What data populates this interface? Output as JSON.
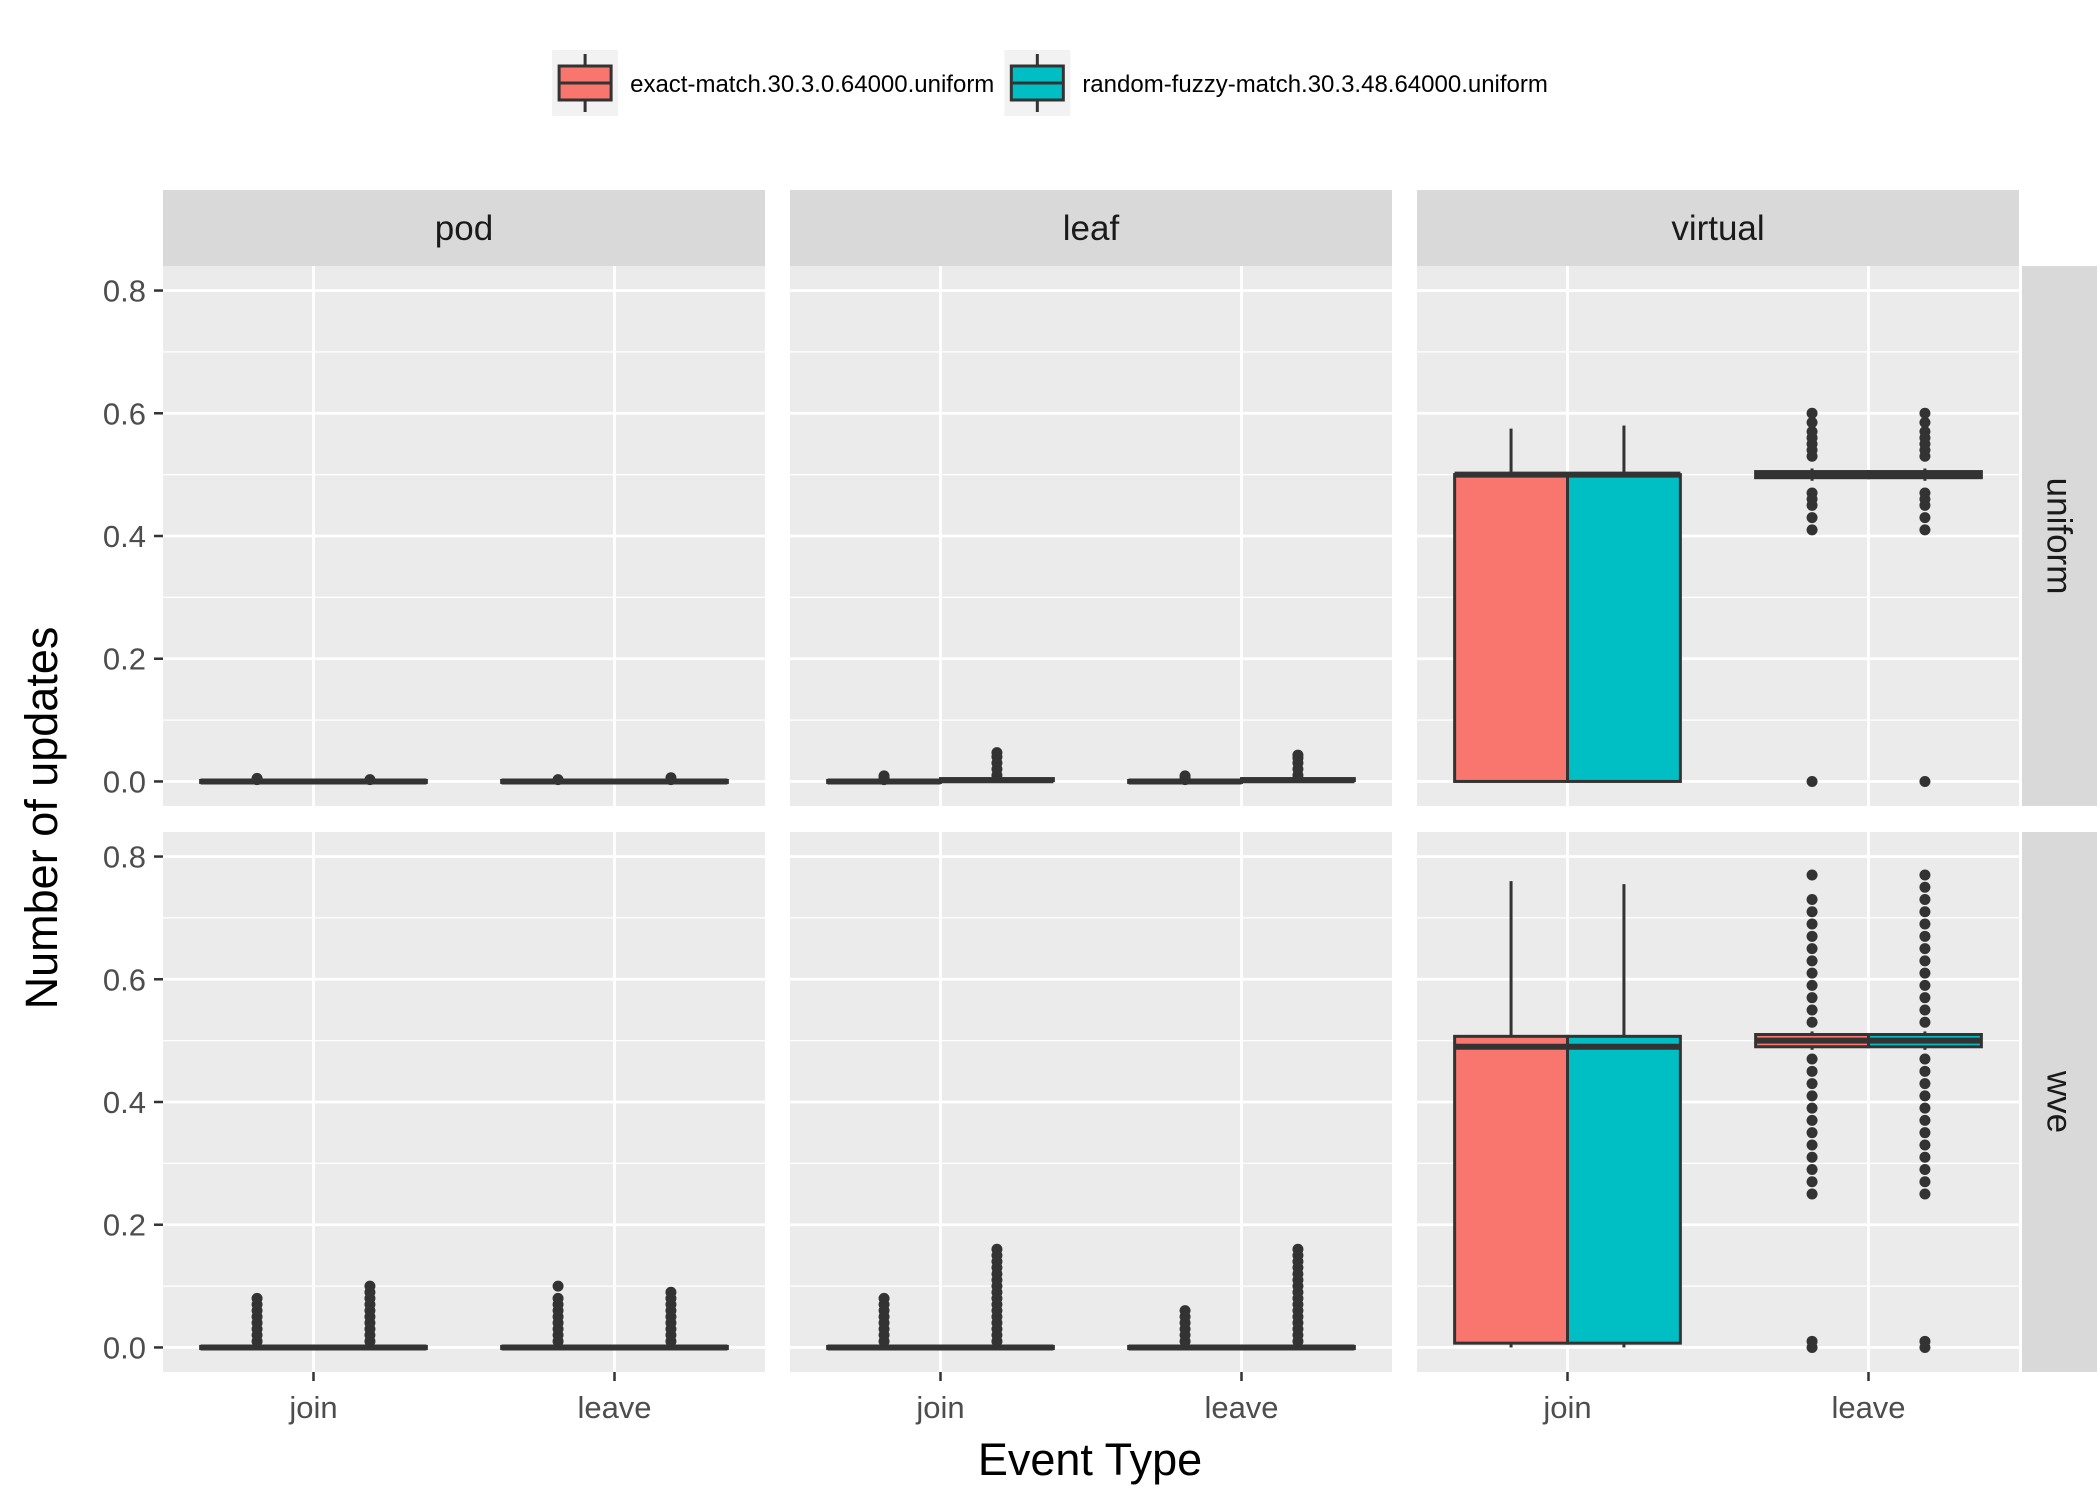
{
  "chart_data": {
    "type": "boxplot",
    "title": "",
    "xlabel": "Event Type",
    "ylabel": "Number of updates",
    "ylim": [
      -0.04,
      0.84
    ],
    "yticks": [
      0.0,
      0.2,
      0.4,
      0.6,
      0.8
    ],
    "ytick_labels": [
      "0.0",
      "0.2",
      "0.4",
      "0.6",
      "0.8"
    ],
    "categories": [
      "join",
      "leave"
    ],
    "facet_cols": [
      "pod",
      "leaf",
      "virtual"
    ],
    "facet_rows": [
      "uniform",
      "wve"
    ],
    "legend_position": "top",
    "grid": true,
    "series": [
      {
        "name": "exact-match.30.3.0.64000.uniform",
        "color": "#F8766D"
      },
      {
        "name": "random-fuzzy-match.30.3.48.64000.uniform",
        "color": "#00BFC4"
      }
    ],
    "panels": [
      {
        "row": "uniform",
        "col": "pod",
        "boxes": [
          {
            "category": "join",
            "series": 0,
            "q1": 0,
            "median": 0,
            "q3": 0,
            "whisker_low": 0,
            "whisker_high": 0,
            "outliers": [
              0.003,
              0.005
            ]
          },
          {
            "category": "join",
            "series": 1,
            "q1": 0,
            "median": 0,
            "q3": 0,
            "whisker_low": 0,
            "whisker_high": 0,
            "outliers": [
              0.003
            ]
          },
          {
            "category": "leave",
            "series": 0,
            "q1": 0,
            "median": 0,
            "q3": 0,
            "whisker_low": 0,
            "whisker_high": 0,
            "outliers": [
              0.003
            ]
          },
          {
            "category": "leave",
            "series": 1,
            "q1": 0,
            "median": 0,
            "q3": 0,
            "whisker_low": 0,
            "whisker_high": 0,
            "outliers": [
              0.003,
              0.006
            ]
          }
        ]
      },
      {
        "row": "uniform",
        "col": "leaf",
        "boxes": [
          {
            "category": "join",
            "series": 0,
            "q1": 0,
            "median": 0,
            "q3": 0,
            "whisker_low": 0,
            "whisker_high": 0,
            "outliers": [
              0.003,
              0.006,
              0.009
            ]
          },
          {
            "category": "join",
            "series": 1,
            "q1": 0,
            "median": 0.002,
            "q3": 0.003,
            "whisker_low": 0,
            "whisker_high": 0.005,
            "outliers": [
              0.01,
              0.02,
              0.03,
              0.04,
              0.047
            ]
          },
          {
            "category": "leave",
            "series": 0,
            "q1": 0,
            "median": 0,
            "q3": 0,
            "whisker_low": 0,
            "whisker_high": 0,
            "outliers": [
              0.003,
              0.006,
              0.009
            ]
          },
          {
            "category": "leave",
            "series": 1,
            "q1": 0,
            "median": 0.002,
            "q3": 0.003,
            "whisker_low": 0,
            "whisker_high": 0.005,
            "outliers": [
              0.01,
              0.02,
              0.03,
              0.038,
              0.043
            ]
          }
        ]
      },
      {
        "row": "uniform",
        "col": "virtual",
        "boxes": [
          {
            "category": "join",
            "series": 0,
            "q1": 0,
            "median": 0.5,
            "q3": 0.5,
            "whisker_low": 0,
            "whisker_high": 0.575,
            "outliers": []
          },
          {
            "category": "join",
            "series": 1,
            "q1": 0,
            "median": 0.5,
            "q3": 0.5,
            "whisker_low": 0,
            "whisker_high": 0.58,
            "outliers": []
          },
          {
            "category": "leave",
            "series": 0,
            "q1": 0.495,
            "median": 0.5,
            "q3": 0.505,
            "whisker_low": 0.49,
            "whisker_high": 0.51,
            "outliers": [
              0,
              0.41,
              0.43,
              0.45,
              0.46,
              0.47,
              0.53,
              0.54,
              0.55,
              0.56,
              0.57,
              0.585,
              0.6
            ]
          },
          {
            "category": "leave",
            "series": 1,
            "q1": 0.495,
            "median": 0.5,
            "q3": 0.505,
            "whisker_low": 0.49,
            "whisker_high": 0.51,
            "outliers": [
              0,
              0.41,
              0.43,
              0.45,
              0.46,
              0.47,
              0.53,
              0.54,
              0.55,
              0.56,
              0.57,
              0.585,
              0.6
            ]
          }
        ]
      },
      {
        "row": "wve",
        "col": "pod",
        "boxes": [
          {
            "category": "join",
            "series": 0,
            "q1": 0,
            "median": 0,
            "q3": 0,
            "whisker_low": 0,
            "whisker_high": 0,
            "outliers": [
              0.01,
              0.02,
              0.03,
              0.04,
              0.05,
              0.06,
              0.07,
              0.08
            ]
          },
          {
            "category": "join",
            "series": 1,
            "q1": 0,
            "median": 0,
            "q3": 0,
            "whisker_low": 0,
            "whisker_high": 0,
            "outliers": [
              0.01,
              0.02,
              0.03,
              0.04,
              0.05,
              0.06,
              0.07,
              0.08,
              0.09,
              0.1
            ]
          },
          {
            "category": "leave",
            "series": 0,
            "q1": 0,
            "median": 0,
            "q3": 0,
            "whisker_low": 0,
            "whisker_high": 0,
            "outliers": [
              0.01,
              0.02,
              0.03,
              0.04,
              0.05,
              0.06,
              0.07,
              0.08,
              0.1
            ]
          },
          {
            "category": "leave",
            "series": 1,
            "q1": 0,
            "median": 0,
            "q3": 0,
            "whisker_low": 0,
            "whisker_high": 0,
            "outliers": [
              0.01,
              0.02,
              0.03,
              0.04,
              0.05,
              0.06,
              0.07,
              0.08,
              0.09
            ]
          }
        ]
      },
      {
        "row": "wve",
        "col": "leaf",
        "boxes": [
          {
            "category": "join",
            "series": 0,
            "q1": 0,
            "median": 0,
            "q3": 0,
            "whisker_low": 0,
            "whisker_high": 0,
            "outliers": [
              0.01,
              0.02,
              0.03,
              0.04,
              0.05,
              0.06,
              0.07,
              0.08
            ]
          },
          {
            "category": "join",
            "series": 1,
            "q1": 0,
            "median": 0,
            "q3": 0,
            "whisker_low": 0,
            "whisker_high": 0,
            "outliers": [
              0.01,
              0.02,
              0.03,
              0.04,
              0.05,
              0.06,
              0.07,
              0.08,
              0.09,
              0.1,
              0.11,
              0.12,
              0.13,
              0.14,
              0.15,
              0.16
            ]
          },
          {
            "category": "leave",
            "series": 0,
            "q1": 0,
            "median": 0,
            "q3": 0,
            "whisker_low": 0,
            "whisker_high": 0,
            "outliers": [
              0.01,
              0.02,
              0.03,
              0.04,
              0.05,
              0.06
            ]
          },
          {
            "category": "leave",
            "series": 1,
            "q1": 0,
            "median": 0,
            "q3": 0,
            "whisker_low": 0,
            "whisker_high": 0,
            "outliers": [
              0.01,
              0.02,
              0.03,
              0.04,
              0.05,
              0.06,
              0.07,
              0.08,
              0.09,
              0.1,
              0.11,
              0.12,
              0.13,
              0.14,
              0.15,
              0.16
            ]
          }
        ]
      },
      {
        "row": "wve",
        "col": "virtual",
        "boxes": [
          {
            "category": "join",
            "series": 0,
            "q1": 0.007,
            "median": 0.49,
            "q3": 0.507,
            "whisker_low": 0,
            "whisker_high": 0.76,
            "outliers": []
          },
          {
            "category": "join",
            "series": 1,
            "q1": 0.007,
            "median": 0.49,
            "q3": 0.507,
            "whisker_low": 0,
            "whisker_high": 0.755,
            "outliers": []
          },
          {
            "category": "leave",
            "series": 0,
            "q1": 0.49,
            "median": 0.5,
            "q3": 0.51,
            "whisker_low": 0.485,
            "whisker_high": 0.515,
            "outliers": [
              0,
              0.01,
              0.25,
              0.27,
              0.29,
              0.31,
              0.33,
              0.35,
              0.37,
              0.39,
              0.41,
              0.43,
              0.45,
              0.47,
              0.53,
              0.55,
              0.57,
              0.59,
              0.61,
              0.63,
              0.65,
              0.67,
              0.69,
              0.71,
              0.73,
              0.77
            ]
          },
          {
            "category": "leave",
            "series": 1,
            "q1": 0.49,
            "median": 0.5,
            "q3": 0.51,
            "whisker_low": 0.485,
            "whisker_high": 0.515,
            "outliers": [
              0,
              0.01,
              0.25,
              0.27,
              0.29,
              0.31,
              0.33,
              0.35,
              0.37,
              0.39,
              0.41,
              0.43,
              0.45,
              0.47,
              0.53,
              0.55,
              0.57,
              0.59,
              0.61,
              0.63,
              0.65,
              0.67,
              0.69,
              0.71,
              0.73,
              0.75,
              0.77
            ]
          }
        ]
      }
    ]
  }
}
